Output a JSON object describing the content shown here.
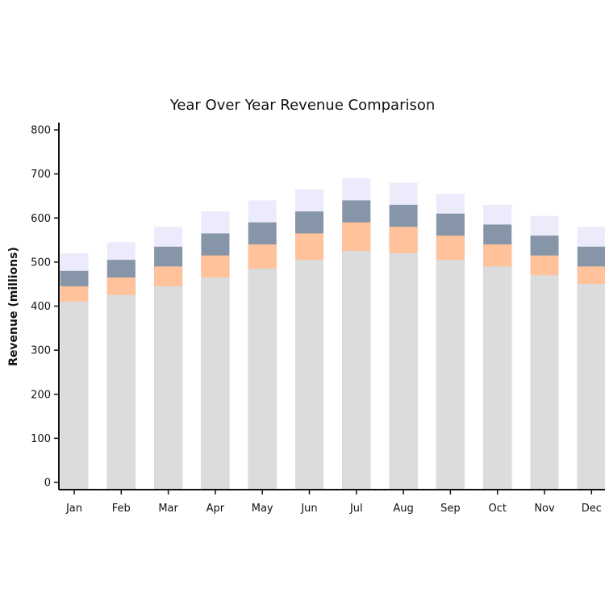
{
  "chart_data": {
    "type": "bar",
    "stacked": false,
    "title": "Year Over Year Revenue Comparison",
    "xlabel": "",
    "ylabel": "Revenue (millions)",
    "ylim": [
      0,
      800
    ],
    "yticks": [
      0,
      100,
      200,
      300,
      400,
      500,
      600,
      700,
      800
    ],
    "grid": false,
    "legend": "none",
    "categories": [
      "Jan",
      "Feb",
      "Mar",
      "Apr",
      "May",
      "Jun",
      "Jul",
      "Aug",
      "Sep",
      "Oct",
      "Nov",
      "Dec"
    ],
    "series": [
      {
        "color": "#ebebfc",
        "values": [
          520,
          545,
          580,
          615,
          640,
          665,
          690,
          680,
          655,
          630,
          605,
          580
        ]
      },
      {
        "color": "#8795a8",
        "values": [
          480,
          505,
          535,
          565,
          590,
          615,
          640,
          630,
          610,
          585,
          560,
          535
        ]
      },
      {
        "color": "#ffc29b",
        "values": [
          445,
          465,
          490,
          515,
          540,
          565,
          590,
          580,
          560,
          540,
          515,
          490
        ]
      },
      {
        "color": "#dbdcde",
        "values": [
          410,
          425,
          445,
          465,
          485,
          505,
          525,
          520,
          505,
          490,
          470,
          450
        ]
      }
    ]
  }
}
